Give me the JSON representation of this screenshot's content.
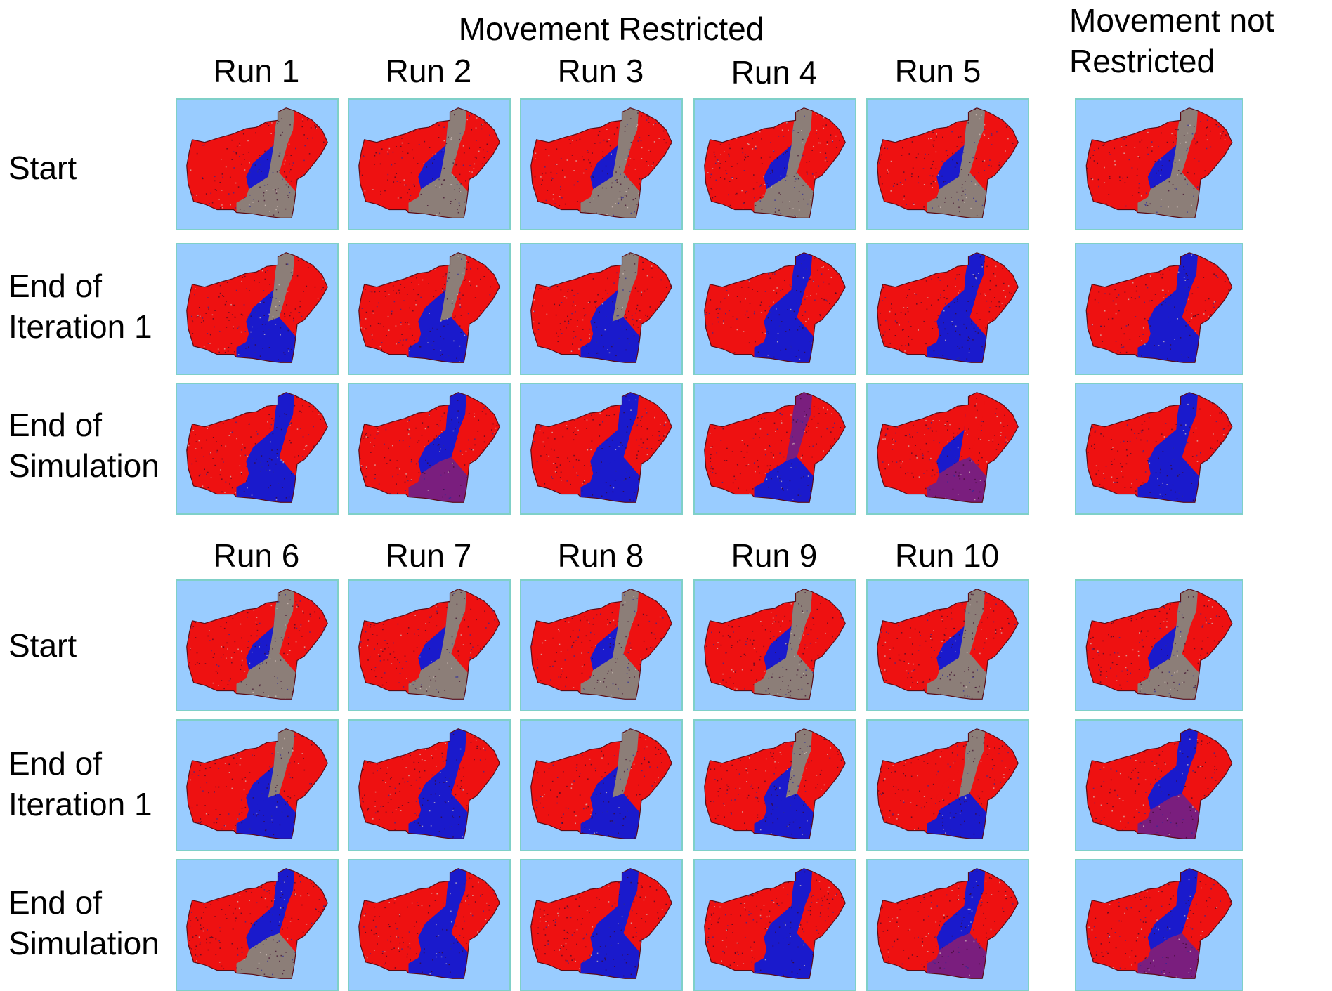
{
  "header": {
    "restricted_title": "Movement Restricted",
    "unrestricted_title_line1": "Movement not",
    "unrestricted_title_line2": "Restricted"
  },
  "runs_top": [
    "Run 1",
    "Run 2",
    "Run 3",
    "Run 4",
    "Run 5"
  ],
  "runs_bottom": [
    "Run 6",
    "Run 7",
    "Run 8",
    "Run 9",
    "Run 10"
  ],
  "row_labels": {
    "start": "Start",
    "iteration_line1": "End of",
    "iteration_line2": "Iteration 1",
    "simulation_line1": "End of",
    "simulation_line2": "Simulation"
  },
  "colors": {
    "water": "#99ccff",
    "territory_red": "#ee1111",
    "territory_blue": "#1a1acc",
    "mixed_gray": "#8c7e78",
    "frame": "#7fd0c8"
  }
}
